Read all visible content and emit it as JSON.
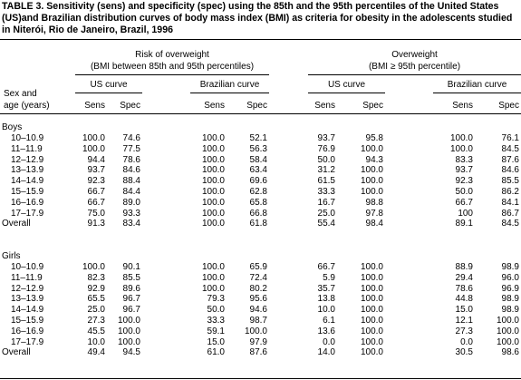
{
  "title": "TABLE 3. Sensitivity (sens) and specificity (spec) using the 85th and the 95th percentiles of the United States (US)and Brazilian distribution curves of body mass index (BMI) as criteria for obesity in the adolescents studied in Niterói, Rio de Janeiro, Brazil, 1996",
  "header": {
    "stub": [
      "Sex and",
      "age (years)"
    ],
    "groups": [
      {
        "line1": "Risk of overweight",
        "line2": "(BMI between 85th and 95th percentiles)"
      },
      {
        "line1": "Overweight",
        "line2": "(BMI ≥ 95th percentile)"
      }
    ],
    "curves": [
      "US curve",
      "Brazilian curve",
      "US curve",
      "Brazilian curve"
    ],
    "cols": [
      "Sens",
      "Spec",
      "Sens",
      "Spec",
      "Sens",
      "Spec",
      "Sens",
      "Spec"
    ]
  },
  "sections": [
    {
      "label": "Boys",
      "rows": [
        {
          "age": "10–10.9",
          "vals": [
            "100.0",
            "74.6",
            "100.0",
            "52.1",
            "93.7",
            "95.8",
            "100.0",
            "76.1"
          ]
        },
        {
          "age": "11–11.9",
          "vals": [
            "100.0",
            "77.5",
            "100.0",
            "56.3",
            "76.9",
            "100.0",
            "100.0",
            "84.5"
          ]
        },
        {
          "age": "12–12.9",
          "vals": [
            "94.4",
            "78.6",
            "100.0",
            "58.4",
            "50.0",
            "94.3",
            "83.3",
            "87.6"
          ]
        },
        {
          "age": "13–13.9",
          "vals": [
            "93.7",
            "84.6",
            "100.0",
            "63.4",
            "31.2",
            "100.0",
            "93.7",
            "84.6"
          ]
        },
        {
          "age": "14–14.9",
          "vals": [
            "92.3",
            "88.4",
            "100.0",
            "69.6",
            "61.5",
            "100.0",
            "92.3",
            "85.5"
          ]
        },
        {
          "age": "15–15.9",
          "vals": [
            "66.7",
            "84.4",
            "100.0",
            "62.8",
            "33.3",
            "100.0",
            "50.0",
            "86.2"
          ]
        },
        {
          "age": "16–16.9",
          "vals": [
            "66.7",
            "89.0",
            "100.0",
            "65.8",
            "16.7",
            "98.8",
            "66.7",
            "84.1"
          ]
        },
        {
          "age": "17–17.9",
          "vals": [
            "75.0",
            "93.3",
            "100.0",
            "66.8",
            "25.0",
            "97.8",
            "100",
            "86.7"
          ]
        },
        {
          "age": "Overall",
          "vals": [
            "91.3",
            "83.4",
            "100.0",
            "61.8",
            "55.4",
            "98.4",
            "89.1",
            "84.5"
          ]
        }
      ]
    },
    {
      "label": "Girls",
      "rows": [
        {
          "age": "10–10.9",
          "vals": [
            "100.0",
            "90.1",
            "100.0",
            "65.9",
            "66.7",
            "100.0",
            "88.9",
            "98.9"
          ]
        },
        {
          "age": "11–11.9",
          "vals": [
            "82.3",
            "85.5",
            "100.0",
            "72.4",
            "5.9",
            "100.0",
            "29.4",
            "96.0"
          ]
        },
        {
          "age": "12–12.9",
          "vals": [
            "92.9",
            "89.6",
            "100.0",
            "80.2",
            "35.7",
            "100.0",
            "78.6",
            "96.9"
          ]
        },
        {
          "age": "13–13.9",
          "vals": [
            "65.5",
            "96.7",
            "79.3",
            "95.6",
            "13.8",
            "100.0",
            "44.8",
            "98.9"
          ]
        },
        {
          "age": "14–14.9",
          "vals": [
            "25.0",
            "96.7",
            "50.0",
            "94.6",
            "10.0",
            "100.0",
            "15.0",
            "98.9"
          ]
        },
        {
          "age": "15–15.9",
          "vals": [
            "27.3",
            "100.0",
            "33.3",
            "98.7",
            "6.1",
            "100.0",
            "12.1",
            "100.0"
          ]
        },
        {
          "age": "16–16.9",
          "vals": [
            "45.5",
            "100.0",
            "59.1",
            "100.0",
            "13.6",
            "100.0",
            "27.3",
            "100.0"
          ]
        },
        {
          "age": "17–17.9",
          "vals": [
            "10.0",
            "100.0",
            "15.0",
            "97.9",
            "0.0",
            "100.0",
            "0.0",
            "100.0"
          ]
        },
        {
          "age": "Overall",
          "vals": [
            "49.4",
            "94.5",
            "61.0",
            "87.6",
            "14.0",
            "100.0",
            "30.5",
            "98.6"
          ]
        }
      ]
    }
  ]
}
